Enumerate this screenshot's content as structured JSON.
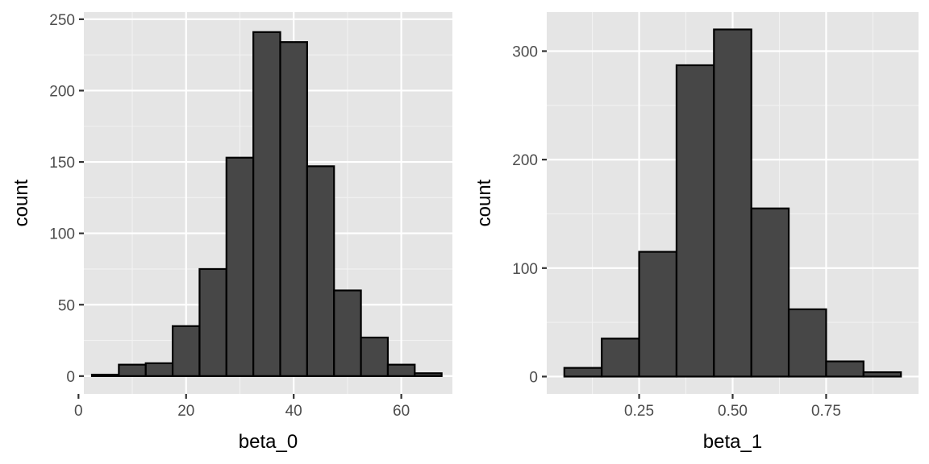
{
  "chart_data": [
    {
      "type": "bar",
      "subtype": "histogram",
      "xlabel": "beta_0",
      "ylabel": "count",
      "xlim": [
        1.0,
        69.5
      ],
      "ylim": [
        -12.5,
        255
      ],
      "x_ticks": [
        0,
        20,
        40,
        60
      ],
      "y_ticks": [
        0,
        50,
        100,
        150,
        200,
        250
      ],
      "bin_width": 5,
      "bins": [
        {
          "x0": 2.5,
          "x1": 7.5,
          "count": 1
        },
        {
          "x0": 7.5,
          "x1": 12.5,
          "count": 8
        },
        {
          "x0": 12.5,
          "x1": 17.5,
          "count": 9
        },
        {
          "x0": 17.5,
          "x1": 22.5,
          "count": 35
        },
        {
          "x0": 22.5,
          "x1": 27.5,
          "count": 75
        },
        {
          "x0": 27.5,
          "x1": 32.5,
          "count": 153
        },
        {
          "x0": 32.5,
          "x1": 37.5,
          "count": 241
        },
        {
          "x0": 37.5,
          "x1": 42.5,
          "count": 234
        },
        {
          "x0": 42.5,
          "x1": 47.5,
          "count": 147
        },
        {
          "x0": 47.5,
          "x1": 52.5,
          "count": 60
        },
        {
          "x0": 52.5,
          "x1": 57.5,
          "count": 27
        },
        {
          "x0": 57.5,
          "x1": 62.5,
          "count": 8
        },
        {
          "x0": 62.5,
          "x1": 67.5,
          "count": 2
        }
      ],
      "fill_color": "#474747",
      "outline_color": "#000000",
      "panel_color": "#e5e5e5",
      "grid": true
    },
    {
      "type": "bar",
      "subtype": "histogram",
      "xlabel": "beta_1",
      "ylabel": "count",
      "xlim": [
        0.003,
        0.997
      ],
      "ylim": [
        -16,
        336
      ],
      "x_ticks": [
        0.25,
        0.5,
        0.75
      ],
      "x_tick_labels": [
        "0.25",
        "0.50",
        "0.75"
      ],
      "y_ticks": [
        0,
        100,
        200,
        300
      ],
      "bin_width": 0.1,
      "bins": [
        {
          "x0": 0.05,
          "x1": 0.15,
          "count": 8
        },
        {
          "x0": 0.15,
          "x1": 0.25,
          "count": 35
        },
        {
          "x0": 0.25,
          "x1": 0.35,
          "count": 115
        },
        {
          "x0": 0.35,
          "x1": 0.45,
          "count": 287
        },
        {
          "x0": 0.45,
          "x1": 0.55,
          "count": 320
        },
        {
          "x0": 0.55,
          "x1": 0.65,
          "count": 155
        },
        {
          "x0": 0.65,
          "x1": 0.75,
          "count": 62
        },
        {
          "x0": 0.75,
          "x1": 0.85,
          "count": 14
        },
        {
          "x0": 0.85,
          "x1": 0.95,
          "count": 4
        }
      ],
      "fill_color": "#474747",
      "outline_color": "#000000",
      "panel_color": "#e5e5e5",
      "grid": true
    }
  ]
}
